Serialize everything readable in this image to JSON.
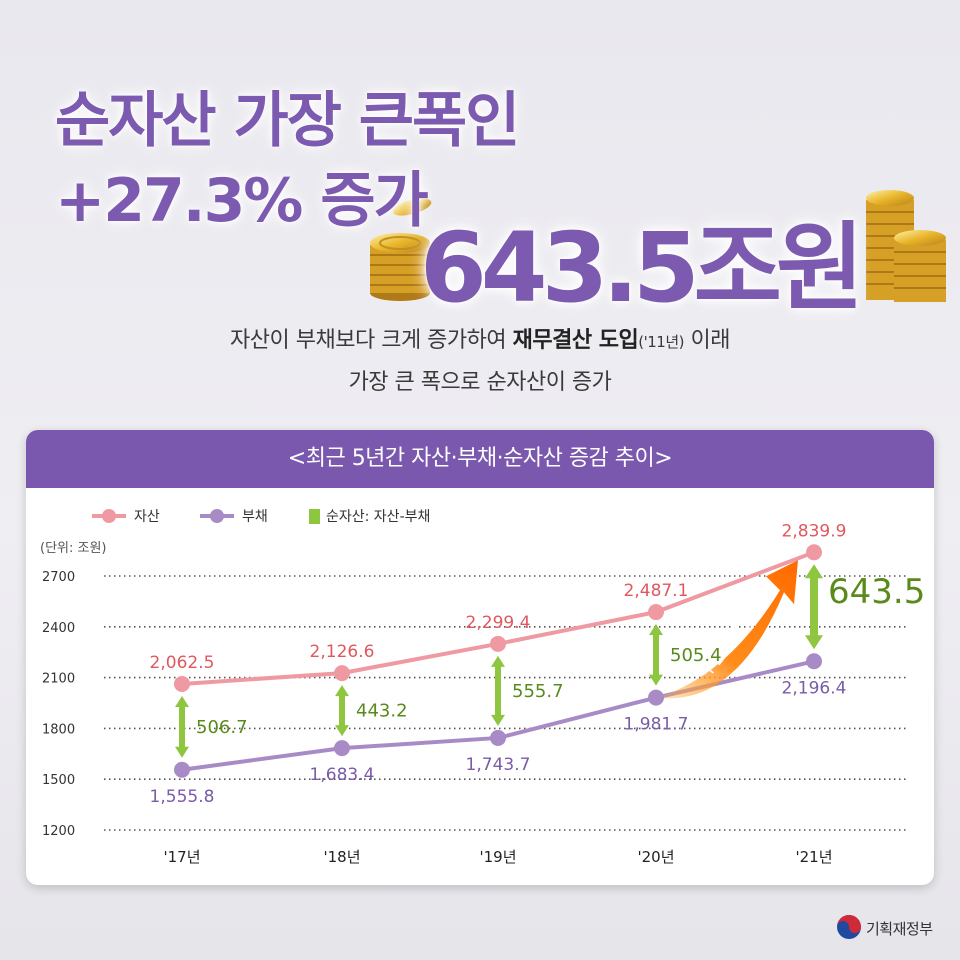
{
  "headline": {
    "line1": "순자산 가장 큰폭인",
    "line2": "+27.3% 증가",
    "amount": "643.5조원"
  },
  "subtitle": {
    "line1_pre": "자산이 부채보다 크게 증가하여 ",
    "line1_bold": "재무결산 도입",
    "line1_small": "('11년)",
    "line1_post": " 이래",
    "line2": "가장 큰 폭으로 순자산이 증가"
  },
  "chart_data": {
    "type": "line",
    "title": "<최근 5년간 자산·부채·순자산 증감 추이>",
    "unit_label": "(단위: 조원)",
    "categories": [
      "'17년",
      "'18년",
      "'19년",
      "'20년",
      "'21년"
    ],
    "series": [
      {
        "name": "자산",
        "values": [
          2062.5,
          2126.6,
          2299.4,
          2487.1,
          2839.9
        ],
        "labels": [
          "2,062.5",
          "2,126.6",
          "2,299.4",
          "2,487.1",
          "2,839.9"
        ],
        "color": "#ef9aa2"
      },
      {
        "name": "부채",
        "values": [
          1555.8,
          1683.4,
          1743.7,
          1981.7,
          2196.4
        ],
        "labels": [
          "1,555.8",
          "1,683.4",
          "1,743.7",
          "1,981.7",
          "2,196.4"
        ],
        "color": "#a88bc6"
      }
    ],
    "net_assets": {
      "name": "순자산: 자산-부채",
      "values": [
        506.7,
        443.2,
        555.7,
        505.4,
        643.5
      ],
      "labels": [
        "506.7",
        "443.2",
        "555.7",
        "505.4",
        "643.5"
      ],
      "color": "#8ec63f",
      "label_color": "#5a8a1c"
    },
    "growth_annotation": "+27.3%",
    "yticks": [
      1200,
      1500,
      1800,
      2100,
      2400,
      2700
    ],
    "ylim": [
      1200,
      2900
    ],
    "grid": true,
    "legend_position": "top-left",
    "asset_label_color": "#e0585f",
    "debt_label_color": "#7a5ba8"
  },
  "footer": {
    "ministry": "기획재정부"
  }
}
